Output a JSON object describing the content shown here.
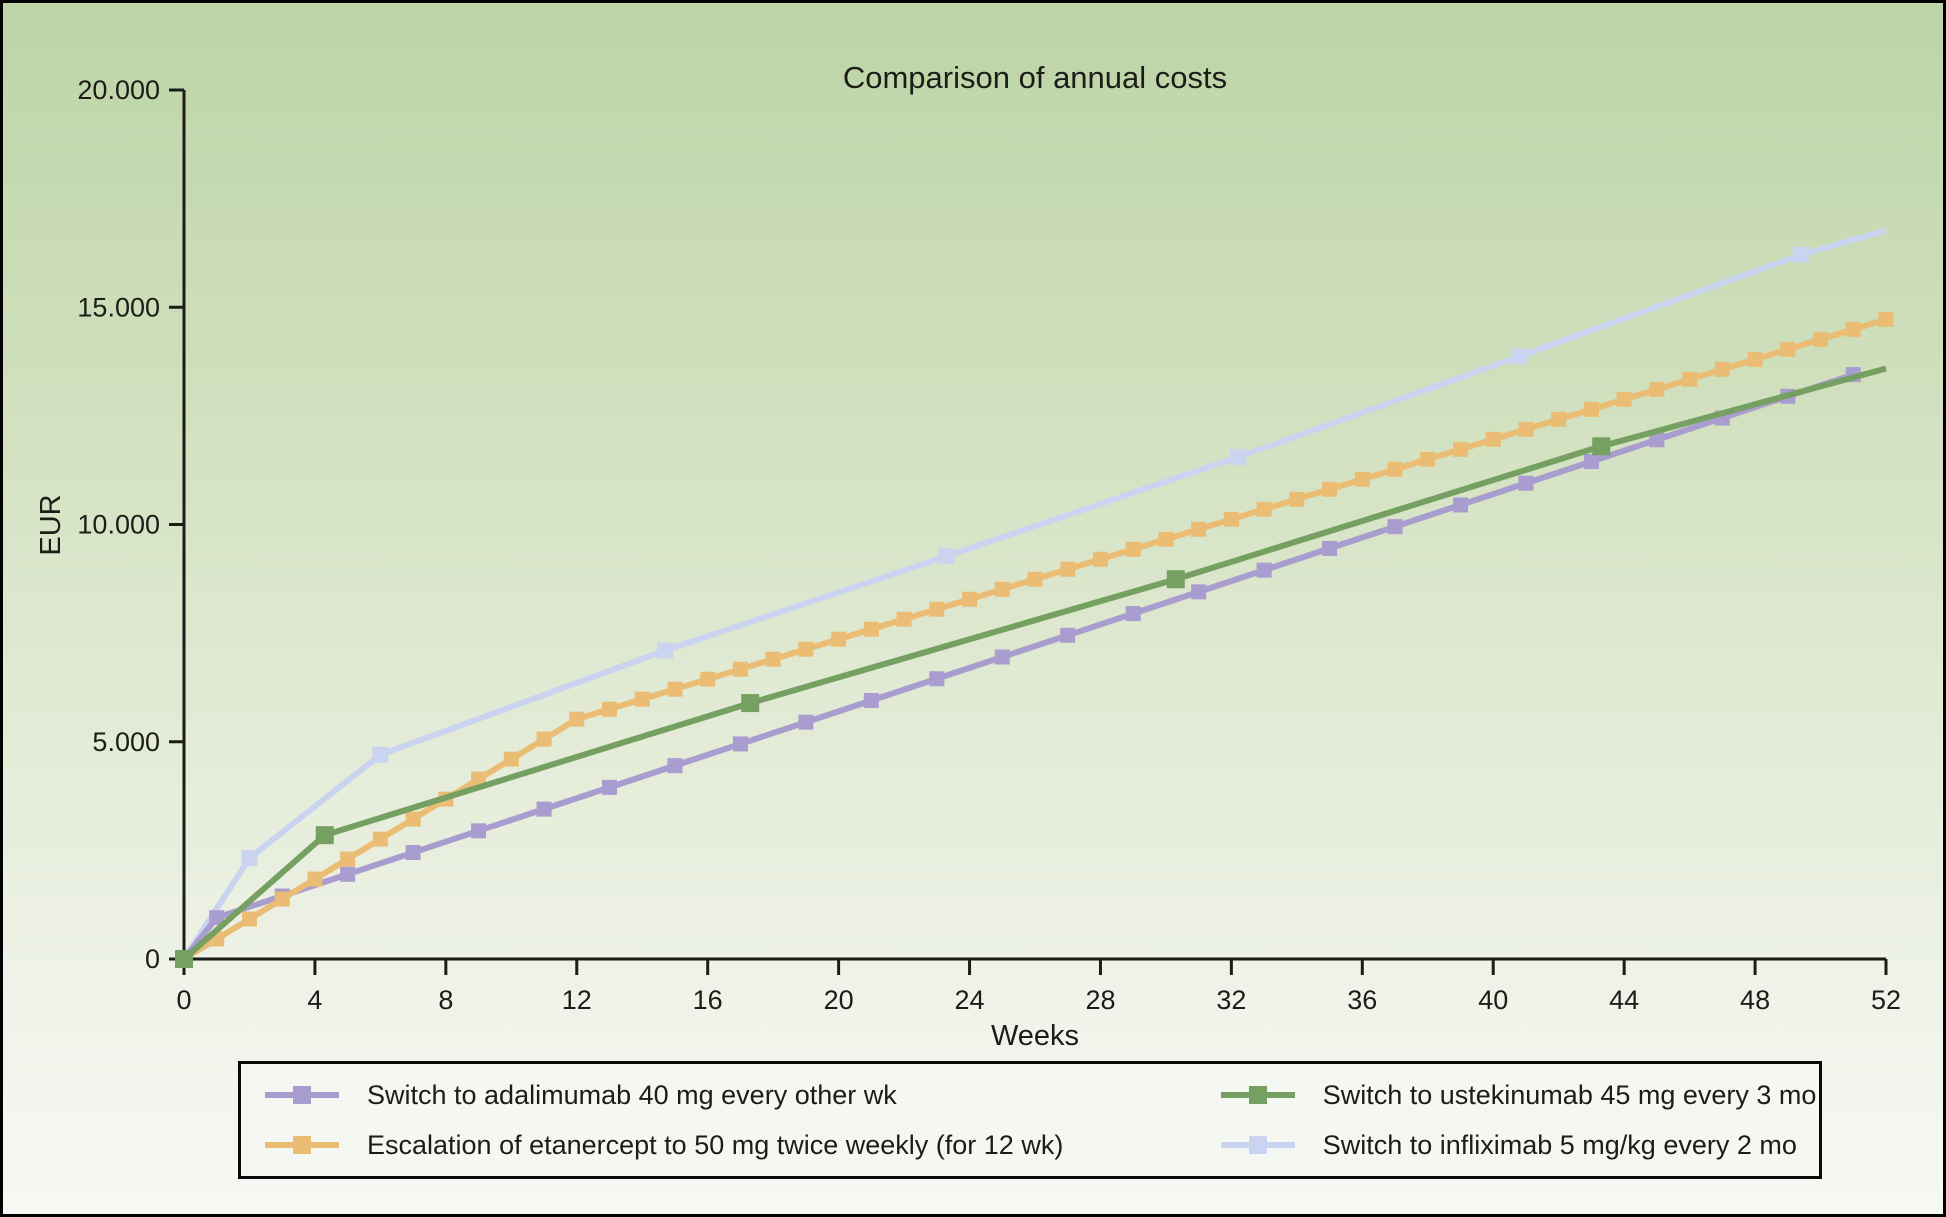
{
  "figure": {
    "title": "Comparison of annual costs",
    "x_axis_label": "Weeks",
    "y_axis_label": "EUR"
  },
  "colors": {
    "background_top": "#bcd4a6",
    "background_bottom": "#f7f8f4",
    "axis": "#1d1d18",
    "legend_border": "#0a0a0a",
    "legend_background": "#f5f7f2",
    "adalimumab": "#a99cce",
    "etanercept": "#ebbd74",
    "ustekinumab": "#75a061",
    "infliximab": "#cad4f0"
  },
  "chart_data": {
    "type": "line",
    "title": "Comparison of annual costs",
    "xlabel": "Weeks",
    "ylabel": "EUR",
    "xlim": [
      0,
      52
    ],
    "ylim": [
      0,
      20000
    ],
    "grid": false,
    "legend_position": "bottom",
    "x_ticks": [
      0,
      4,
      8,
      12,
      16,
      20,
      24,
      28,
      32,
      36,
      40,
      44,
      48,
      52
    ],
    "y_ticks": [
      {
        "value": 0,
        "label": "0"
      },
      {
        "value": 5000,
        "label": "5.000"
      },
      {
        "value": 10000,
        "label": "10.000"
      },
      {
        "value": 15000,
        "label": "15.000"
      },
      {
        "value": 20000,
        "label": "20.000"
      }
    ],
    "series": [
      {
        "id": "infliximab",
        "name": "Switch to infliximab 5 mg/kg every 2 mo",
        "color": "#cad4f0",
        "marker": "square",
        "marker_size": 16,
        "no_end_marker": true,
        "x": [
          0,
          2,
          6,
          14.7,
          23.3,
          32.2,
          40.8,
          49.4,
          52
        ],
        "y": [
          0,
          2320,
          4700,
          7100,
          9270,
          11550,
          13870,
          16210,
          16770
        ]
      },
      {
        "id": "adalimumab",
        "name": "Switch to adalimumab 40 mg every other wk",
        "color": "#a99cce",
        "marker": "square",
        "marker_size": 15,
        "no_end_marker": false,
        "x": [
          0,
          1,
          3,
          5,
          7,
          9,
          11,
          13,
          15,
          17,
          19,
          21,
          23,
          25,
          27,
          29,
          31,
          33,
          35,
          37,
          39,
          41,
          43,
          45,
          47,
          49,
          51
        ],
        "y": [
          0,
          950,
          1450,
          1950,
          2450,
          2950,
          3450,
          3950,
          4450,
          4950,
          5450,
          5950,
          6450,
          6950,
          7450,
          7950,
          8450,
          8950,
          9450,
          9950,
          10450,
          10950,
          11450,
          11950,
          12450,
          12950,
          13450
        ]
      },
      {
        "id": "etanercept",
        "name": "Escalation of etanercept to 50 mg twice weekly (for 12 wk)",
        "color": "#ebbd74",
        "marker": "square",
        "marker_size": 15,
        "no_end_marker": false,
        "x": [
          0,
          1,
          2,
          3,
          4,
          5,
          6,
          7,
          8,
          9,
          10,
          11,
          12,
          13,
          14,
          15,
          16,
          17,
          18,
          19,
          20,
          21,
          22,
          23,
          24,
          25,
          26,
          27,
          28,
          29,
          30,
          31,
          32,
          33,
          34,
          35,
          36,
          37,
          38,
          39,
          40,
          41,
          42,
          43,
          44,
          45,
          46,
          47,
          48,
          49,
          50,
          51,
          52
        ],
        "y": [
          0,
          460,
          920,
          1380,
          1840,
          2300,
          2760,
          3220,
          3680,
          4140,
          4600,
          5060,
          5520,
          5750,
          5980,
          6210,
          6440,
          6670,
          6900,
          7130,
          7360,
          7590,
          7820,
          8050,
          8280,
          8510,
          8740,
          8970,
          9200,
          9430,
          9660,
          9890,
          10120,
          10350,
          10580,
          10810,
          11040,
          11270,
          11500,
          11730,
          11960,
          12190,
          12420,
          12650,
          12880,
          13110,
          13340,
          13570,
          13800,
          14030,
          14260,
          14490,
          14720
        ]
      },
      {
        "id": "ustekinumab",
        "name": "Switch to ustekinumab 45 mg every 3 mo",
        "color": "#75a061",
        "marker": "square",
        "marker_size": 18,
        "no_end_marker": true,
        "x": [
          0,
          4.3,
          17.3,
          30.3,
          43.3,
          52
        ],
        "y": [
          0,
          2850,
          5890,
          8740,
          11800,
          13590
        ]
      }
    ]
  },
  "legend": {
    "items": [
      {
        "series_id": "adalimumab",
        "label": "Switch to adalimumab 40 mg every other wk",
        "color": "#a99cce"
      },
      {
        "series_id": "etanercept",
        "label": "Escalation of etanercept to 50 mg twice weekly (for 12 wk)",
        "color": "#ebbd74"
      },
      {
        "series_id": "ustekinumab",
        "label": "Switch to ustekinumab 45 mg every 3 mo",
        "color": "#75a061"
      },
      {
        "series_id": "infliximab",
        "label": "Switch to infliximab 5 mg/kg every 2 mo",
        "color": "#cad4f0"
      }
    ]
  }
}
